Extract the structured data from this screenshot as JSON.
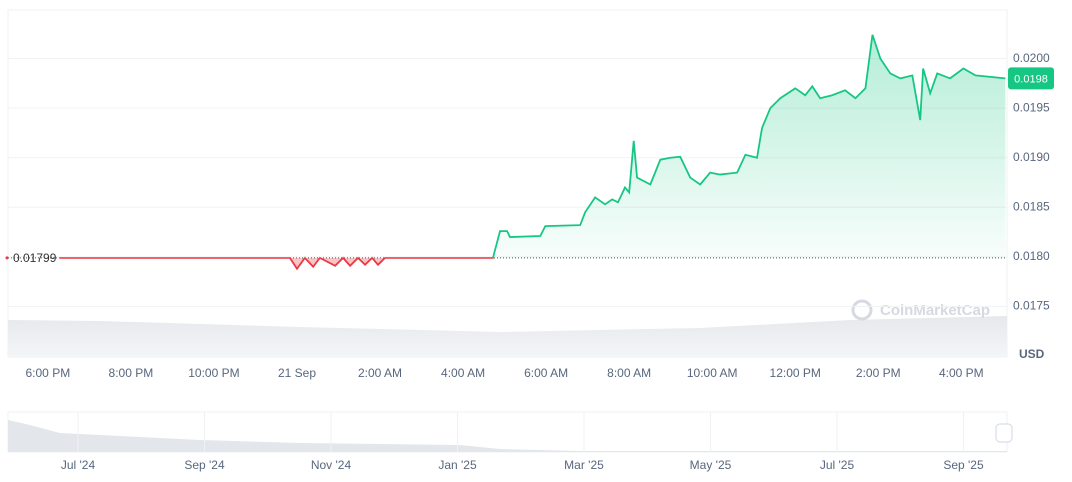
{
  "chart_data": {
    "type": "line",
    "x": [
      18.29,
      20.46,
      22.87,
      23.83,
      24.0,
      24.19,
      24.39,
      24.55,
      24.92,
      25.11,
      25.28,
      25.47,
      25.64,
      25.81,
      25.95,
      26.12,
      27.45,
      28.72,
      28.89,
      29.06,
      29.13,
      29.86,
      29.98,
      30.82,
      30.94,
      31.18,
      31.42,
      31.59,
      31.73,
      31.9,
      32.0,
      32.11,
      32.19,
      32.51,
      32.75,
      32.99,
      33.23,
      33.47,
      33.71,
      33.95,
      34.19,
      34.6,
      34.8,
      35.08,
      35.2,
      35.4,
      35.64,
      36.0,
      36.24,
      36.41,
      36.6,
      36.89,
      37.2,
      37.45,
      37.69,
      37.86,
      38.05,
      38.29,
      38.53,
      38.82,
      39.01,
      39.08,
      39.25,
      39.42,
      39.73,
      40.05,
      40.34,
      41.06
    ],
    "series": [
      {
        "color": "#16c784",
        "color_down": "#ea3943",
        "values": [
          0.01799,
          0.01799,
          0.01799,
          0.01799,
          0.01788,
          0.01799,
          0.0179,
          0.01799,
          0.01791,
          0.01799,
          0.01791,
          0.01799,
          0.01792,
          0.01799,
          0.01792,
          0.01799,
          0.01799,
          0.01799,
          0.01826,
          0.01826,
          0.0182,
          0.01821,
          0.01831,
          0.01832,
          0.01845,
          0.0186,
          0.01853,
          0.01858,
          0.01855,
          0.0187,
          0.01865,
          0.01917,
          0.0188,
          0.01873,
          0.01898,
          0.019,
          0.01901,
          0.0188,
          0.01873,
          0.01885,
          0.01883,
          0.01885,
          0.01903,
          0.019,
          0.0193,
          0.0195,
          0.0196,
          0.0197,
          0.01963,
          0.01972,
          0.0196,
          0.01963,
          0.01968,
          0.0196,
          0.0197,
          0.02024,
          0.02,
          0.01985,
          0.0198,
          0.01983,
          0.01938,
          0.0199,
          0.01965,
          0.01985,
          0.0198,
          0.0199,
          0.01983,
          0.0198
        ]
      }
    ],
    "baseline": 0.01799,
    "xlim": [
      17.04,
      41.1
    ],
    "ylim": [
      0.01699,
      0.02049
    ],
    "xticks": [
      {
        "value": 18,
        "label": "6:00 PM"
      },
      {
        "value": 20,
        "label": "8:00 PM"
      },
      {
        "value": 22,
        "label": "10:00 PM"
      },
      {
        "value": 24,
        "label": "21 Sep"
      },
      {
        "value": 26,
        "label": "2:00 AM"
      },
      {
        "value": 28,
        "label": "4:00 AM"
      },
      {
        "value": 30,
        "label": "6:00 AM"
      },
      {
        "value": 32,
        "label": "8:00 AM"
      },
      {
        "value": 34,
        "label": "10:00 AM"
      },
      {
        "value": 36,
        "label": "12:00 PM"
      },
      {
        "value": 38,
        "label": "2:00 PM"
      },
      {
        "value": 40,
        "label": "4:00 PM"
      }
    ],
    "yticks": [
      0.0175,
      {
        "value": 0.018,
        "label": "0.0180"
      },
      0.0185,
      {
        "value": 0.019,
        "label": "0.0190"
      },
      0.0195,
      {
        "value": 0.02,
        "label": "0.0200"
      }
    ],
    "grid": true,
    "y_unit": "USD",
    "watermark": "CoinMarketCap",
    "navigator": {
      "labels": [
        "Jul '24",
        "Sep '24",
        "Nov '24",
        "Jan '25",
        "Mar '25",
        "May '25",
        "Jul '25",
        "Sep '25"
      ]
    }
  }
}
